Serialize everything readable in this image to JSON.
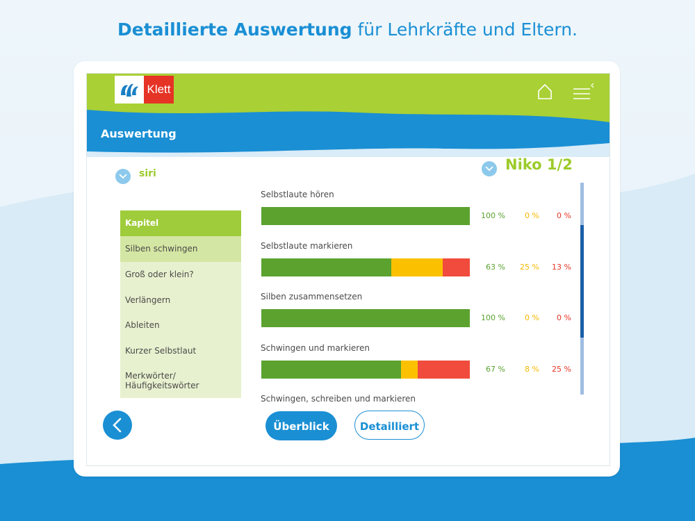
{
  "headline": {
    "bold": "Detaillierte Auswertung",
    "rest": " für Lehrkräfte und Eltern."
  },
  "app": {
    "brand": "Klett",
    "section_title": "Auswertung",
    "class_name": "siri",
    "student_name": "Niko 1/2"
  },
  "sidebar": {
    "header": "Kapitel",
    "items": [
      {
        "label": "Silben schwingen"
      },
      {
        "label": "Groß oder klein?"
      },
      {
        "label": "Verlängern"
      },
      {
        "label": "Ableiten"
      },
      {
        "label": "Kurzer Selbstlaut"
      },
      {
        "label": "Merkwörter/ Häufigkeitswörter"
      }
    ]
  },
  "results": [
    {
      "label": "Selbstlaute hören",
      "green": 100,
      "yellow": 0,
      "red": 0,
      "green_text": "100 %",
      "yellow_text": "0 %",
      "red_text": "0 %"
    },
    {
      "label": "Selbstlaute markieren",
      "green": 63,
      "yellow": 25,
      "red": 13,
      "green_text": "63 %",
      "yellow_text": "25 %",
      "red_text": "13 %"
    },
    {
      "label": "Silben zusammensetzen",
      "green": 100,
      "yellow": 0,
      "red": 0,
      "green_text": "100 %",
      "yellow_text": "0 %",
      "red_text": "0 %"
    },
    {
      "label": "Schwingen und markieren",
      "green": 67,
      "yellow": 8,
      "red": 25,
      "green_text": "67 %",
      "yellow_text": "8 %",
      "red_text": "25 %"
    },
    {
      "label": "Schwingen, schreiben und markieren"
    }
  ],
  "buttons": {
    "overview": "Überblick",
    "detailed": "Detailliert"
  },
  "colors": {
    "green": "#5ba22f",
    "yellow": "#fbc100",
    "red": "#f04b3c",
    "blue": "#1a8fd4",
    "lime": "#a6cf38"
  },
  "icons": {
    "home": "home-icon",
    "menu": "menu-icon",
    "back": "chevron-left-icon",
    "dropdown": "chevron-down-icon"
  }
}
